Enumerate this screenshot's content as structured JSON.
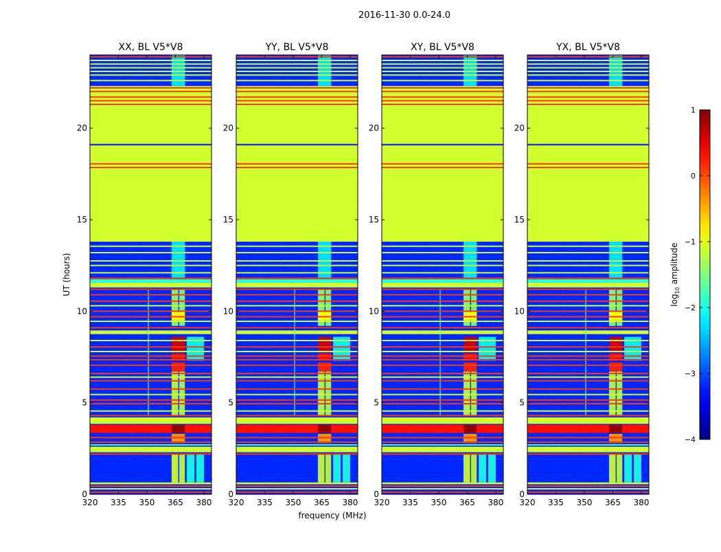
{
  "chart_data": {
    "type": "heatmap",
    "title": "2016-11-30 0.0-24.0",
    "xlabel": "frequency (MHz)",
    "ylabel": "UT (hours)",
    "xlim": [
      320,
      384
    ],
    "ylim": [
      0,
      24
    ],
    "xticks": [
      320,
      335,
      350,
      365,
      380
    ],
    "xtick_labels": [
      "320",
      "335",
      "350",
      "365",
      "380"
    ],
    "yticks": [
      0,
      5,
      10,
      15,
      20
    ],
    "ytick_labels": [
      "0",
      "5",
      "10",
      "15",
      "20"
    ],
    "colormap": "jet",
    "colorbar": {
      "label": "log10 amplitude",
      "label_main": "log",
      "label_sub": "10",
      "label_rest": " amplitude",
      "range": [
        -4,
        1
      ],
      "ticks": [
        1,
        0,
        -1,
        -2,
        -3,
        -4
      ],
      "tick_labels": [
        "1",
        "0",
        "−1",
        "−2",
        "−3",
        "−4"
      ]
    },
    "panels": [
      {
        "title": "XX, BL V5*V8"
      },
      {
        "title": "YY, BL V5*V8"
      },
      {
        "title": "XY, BL V5*V8"
      },
      {
        "title": "YX, BL V5*V8"
      }
    ],
    "base_bands": [
      {
        "t": [
          0,
          13.8
        ],
        "value": -3.2,
        "noise": true
      },
      {
        "t": [
          13.8,
          22.3
        ],
        "value": -1.1,
        "noise": false
      },
      {
        "t": [
          22.3,
          24
        ],
        "value": -3.2,
        "noise": true
      }
    ],
    "full_bands": [
      {
        "t": [
          0.55,
          0.65
        ],
        "value": -1.1
      },
      {
        "t": [
          2.3,
          2.6
        ],
        "value": -1.1
      },
      {
        "t": [
          3.35,
          3.8
        ],
        "value": 0.3
      },
      {
        "t": [
          3.85,
          4.2
        ],
        "value": -1.1
      },
      {
        "t": [
          8.75,
          8.95
        ],
        "value": -1.1
      },
      {
        "t": [
          11.3,
          11.55
        ],
        "value": -1.1
      },
      {
        "t": [
          11.55,
          11.75
        ],
        "value": -1.9
      }
    ],
    "blocks": [
      {
        "f": [
          363,
          366.5
        ],
        "t": [
          0.65,
          2.2
        ],
        "value": -1.1
      },
      {
        "f": [
          367,
          370
        ],
        "t": [
          0.65,
          2.2
        ],
        "value": -1.2
      },
      {
        "f": [
          371,
          375
        ],
        "t": [
          0.65,
          2.2
        ],
        "value": -2.0
      },
      {
        "f": [
          376,
          380
        ],
        "t": [
          0.65,
          2.2
        ],
        "value": -2.0
      },
      {
        "f": [
          363,
          370
        ],
        "t": [
          2.8,
          3.3
        ],
        "value": -0.4
      },
      {
        "f": [
          363,
          370
        ],
        "t": [
          3.35,
          3.8
        ],
        "value": 0.95
      },
      {
        "f": [
          363,
          366.5
        ],
        "t": [
          4.3,
          6.7
        ],
        "value": -1.2
      },
      {
        "f": [
          367,
          370
        ],
        "t": [
          4.3,
          6.7
        ],
        "value": -1.3
      },
      {
        "f": [
          363,
          370
        ],
        "t": [
          6.7,
          7.2
        ],
        "value": 0.2
      },
      {
        "f": [
          363,
          370
        ],
        "t": [
          7.3,
          7.7
        ],
        "value": 0.3
      },
      {
        "f": [
          363,
          370
        ],
        "t": [
          7.8,
          8.6
        ],
        "value": 0.6
      },
      {
        "f": [
          371,
          380
        ],
        "t": [
          7.3,
          8.6
        ],
        "value": -2.1
      },
      {
        "f": [
          363,
          366.5
        ],
        "t": [
          9.2,
          11.2
        ],
        "value": -1.4
      },
      {
        "f": [
          367,
          370
        ],
        "t": [
          9.2,
          11.2
        ],
        "value": -1.5
      },
      {
        "f": [
          363,
          370
        ],
        "t": [
          9.5,
          10.0
        ],
        "value": -0.9
      },
      {
        "f": [
          350.5,
          351
        ],
        "t": [
          4.3,
          11.2
        ],
        "value": -1.8
      },
      {
        "f": [
          363,
          370
        ],
        "t": [
          11.8,
          13.8
        ],
        "value": -2.2
      },
      {
        "f": [
          363,
          370
        ],
        "t": [
          22.3,
          24
        ],
        "value": -2.2
      }
    ],
    "lines": [
      {
        "t": 0.12,
        "value": 0.1
      },
      {
        "t": 0.3,
        "value": -1.1
      },
      {
        "t": 0.45,
        "value": 0.1
      },
      {
        "t": 2.2,
        "value": 0.1
      },
      {
        "t": 2.7,
        "value": -1.8
      },
      {
        "t": 2.85,
        "value": 0.1
      },
      {
        "t": 3.1,
        "value": 0.1
      },
      {
        "t": 4.3,
        "value": 0.1
      },
      {
        "t": 4.55,
        "value": -1.1
      },
      {
        "t": 4.95,
        "value": 0.1
      },
      {
        "t": 5.15,
        "value": 0.1
      },
      {
        "t": 5.45,
        "value": -1.1
      },
      {
        "t": 5.75,
        "value": 0.1
      },
      {
        "t": 6.2,
        "value": 0.1
      },
      {
        "t": 6.4,
        "value": -1.1
      },
      {
        "t": 6.6,
        "value": 0.1
      },
      {
        "t": 7.05,
        "value": 0.1
      },
      {
        "t": 7.35,
        "value": 0.1
      },
      {
        "t": 7.55,
        "value": 0.1
      },
      {
        "t": 7.8,
        "value": -1.1
      },
      {
        "t": 8.05,
        "value": 0.1
      },
      {
        "t": 8.4,
        "value": -1.1
      },
      {
        "t": 9.1,
        "value": 0.1
      },
      {
        "t": 9.45,
        "value": -1.1
      },
      {
        "t": 9.7,
        "value": 0.1
      },
      {
        "t": 10.0,
        "value": 0.1
      },
      {
        "t": 10.3,
        "value": -1.1
      },
      {
        "t": 10.55,
        "value": 0.1
      },
      {
        "t": 10.9,
        "value": 0.1
      },
      {
        "t": 11.2,
        "value": 0.1
      },
      {
        "t": 11.8,
        "value": 0.1
      },
      {
        "t": 12.1,
        "value": -1.1
      },
      {
        "t": 12.5,
        "value": -1.1
      },
      {
        "t": 12.75,
        "value": -1.1
      },
      {
        "t": 13.2,
        "value": -1.1
      },
      {
        "t": 13.55,
        "value": -1.1
      },
      {
        "t": 17.85,
        "value": 0.1
      },
      {
        "t": 18.05,
        "value": 0.1
      },
      {
        "t": 19.1,
        "value": -3.3
      },
      {
        "t": 21.3,
        "value": 0.1
      },
      {
        "t": 21.5,
        "value": 0.1
      },
      {
        "t": 21.7,
        "value": 0.1
      },
      {
        "t": 22.0,
        "value": 0.1
      },
      {
        "t": 22.2,
        "value": 0.1
      },
      {
        "t": 22.6,
        "value": -1.1
      },
      {
        "t": 22.9,
        "value": -1.1
      },
      {
        "t": 23.1,
        "value": -1.1
      },
      {
        "t": 23.3,
        "value": -1.1
      },
      {
        "t": 23.5,
        "value": -1.1
      },
      {
        "t": 23.7,
        "value": -1.1
      },
      {
        "t": 23.9,
        "value": 0.1
      }
    ]
  }
}
